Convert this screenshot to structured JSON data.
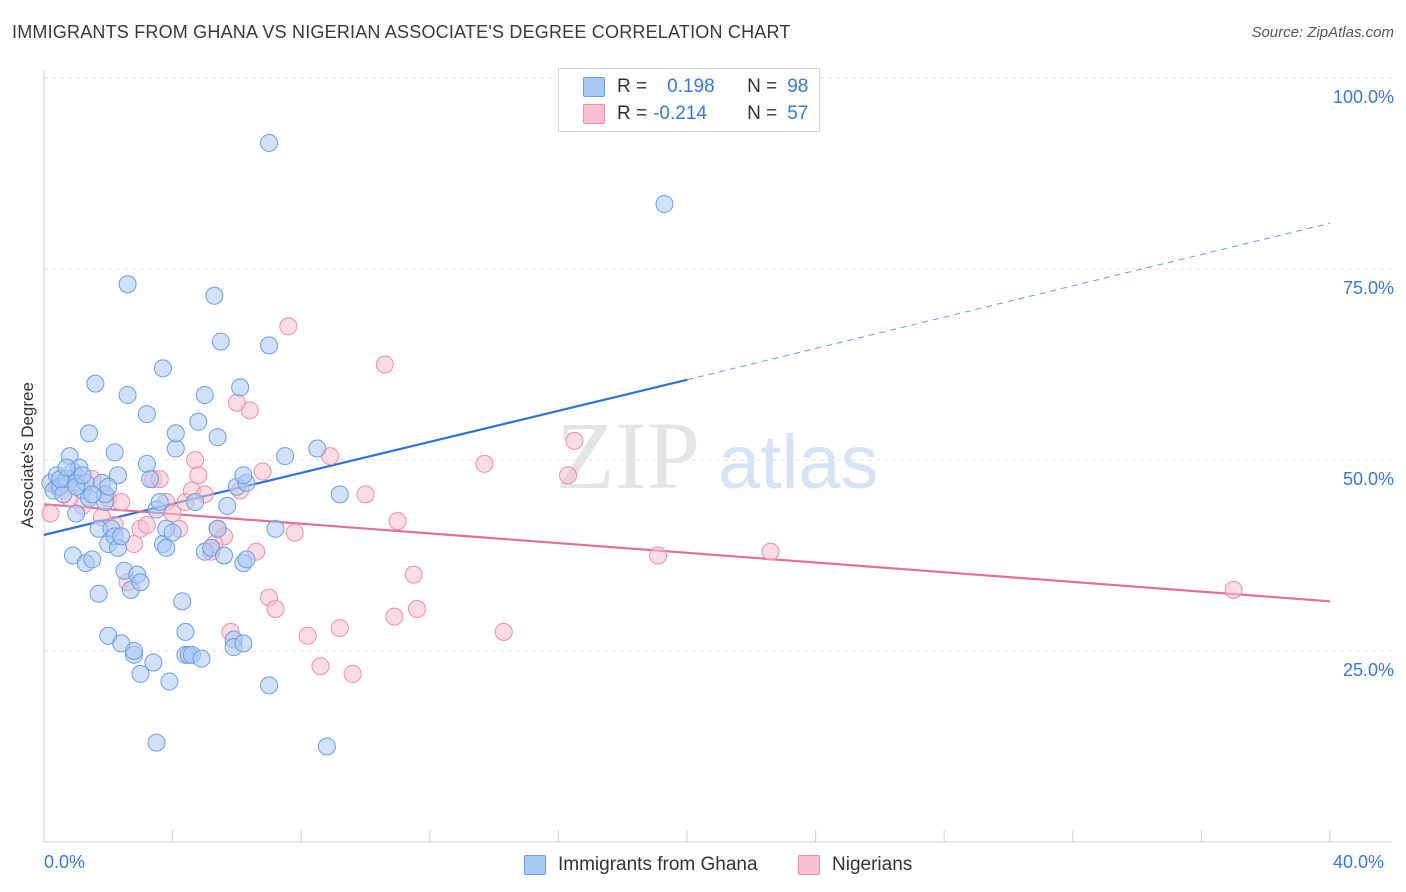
{
  "title": "IMMIGRANTS FROM GHANA VS NIGERIAN ASSOCIATE'S DEGREE CORRELATION CHART",
  "source": "Source: ZipAtlas.com",
  "watermark": {
    "zip": "ZIP",
    "atlas": "atlas"
  },
  "colors": {
    "blue_fill": "#a9c8f4",
    "blue_stroke": "#6f9ee0",
    "blue_line": "#2e72d2",
    "pink_fill": "#f7bfd0",
    "pink_stroke": "#ec8fab",
    "pink_line": "#e0709a",
    "tick_text": "#3a78d8",
    "grid": "#e2e2e2"
  },
  "legend": {
    "rows": [
      {
        "r_label": "R =",
        "r_value": "0.198",
        "n_label": "N =",
        "n_value": "98",
        "series": "blue"
      },
      {
        "r_label": "R =",
        "r_value": "-0.214",
        "n_label": "N =",
        "n_value": "57",
        "series": "pink"
      }
    ]
  },
  "bottom_legend": [
    {
      "label": "Immigrants from Ghana",
      "series": "blue"
    },
    {
      "label": "Nigerians",
      "series": "pink"
    }
  ],
  "chart_data": {
    "type": "scatter",
    "title": "IMMIGRANTS FROM GHANA VS NIGERIAN ASSOCIATE'S DEGREE CORRELATION CHART",
    "xlabel": "",
    "ylabel": "Associate's Degree",
    "xlim": [
      0,
      40
    ],
    "ylim": [
      0,
      105
    ],
    "x_tick_labels": [
      "0.0%",
      "40.0%"
    ],
    "y_ticks": [
      25,
      50,
      75,
      100
    ],
    "y_tick_labels": [
      "25.0%",
      "50.0%",
      "75.0%",
      "100.0%"
    ],
    "grid": true,
    "legend_position": "top-center",
    "series": [
      {
        "name": "Immigrants from Ghana",
        "color": "blue",
        "stats": {
          "R": 0.198,
          "N": 98
        },
        "trend": {
          "x0": 0,
          "y0": 40.2,
          "x1": 20,
          "y1": 60.5,
          "dash_to_x": 40,
          "dash_to_y": 81.0
        },
        "points": [
          [
            0.2,
            47
          ],
          [
            0.3,
            46
          ],
          [
            0.4,
            48
          ],
          [
            0.5,
            46.5
          ],
          [
            0.6,
            45.5
          ],
          [
            0.7,
            47.5
          ],
          [
            0.8,
            50.5
          ],
          [
            0.9,
            48.5
          ],
          [
            1.0,
            43
          ],
          [
            1.0,
            47
          ],
          [
            0.9,
            37.5
          ],
          [
            1.1,
            49
          ],
          [
            1.2,
            46
          ],
          [
            1.3,
            36.5
          ],
          [
            1.3,
            47
          ],
          [
            1.4,
            53.5
          ],
          [
            1.4,
            45
          ],
          [
            1.5,
            37
          ],
          [
            1.6,
            60
          ],
          [
            1.7,
            41
          ],
          [
            1.7,
            32.5
          ],
          [
            1.8,
            47
          ],
          [
            1.9,
            44.5
          ],
          [
            1.9,
            45.5
          ],
          [
            2.0,
            39
          ],
          [
            2.0,
            27
          ],
          [
            2.1,
            41
          ],
          [
            2.2,
            40
          ],
          [
            2.2,
            51
          ],
          [
            2.3,
            48
          ],
          [
            2.3,
            38.5
          ],
          [
            2.4,
            26
          ],
          [
            2.5,
            35.5
          ],
          [
            2.6,
            73
          ],
          [
            2.6,
            58.5
          ],
          [
            2.7,
            33
          ],
          [
            2.8,
            24.5
          ],
          [
            2.8,
            25
          ],
          [
            2.9,
            35
          ],
          [
            3.0,
            34
          ],
          [
            3.0,
            22
          ],
          [
            2.4,
            40
          ],
          [
            3.2,
            49.5
          ],
          [
            3.2,
            56
          ],
          [
            3.3,
            47.5
          ],
          [
            3.4,
            23.5
          ],
          [
            3.5,
            43.5
          ],
          [
            3.6,
            44.5
          ],
          [
            3.7,
            39
          ],
          [
            3.7,
            62
          ],
          [
            3.8,
            41
          ],
          [
            3.9,
            21
          ],
          [
            4.1,
            51.5
          ],
          [
            4.1,
            53.5
          ],
          [
            4.3,
            31.5
          ],
          [
            4.4,
            27.5
          ],
          [
            4.4,
            24.5
          ],
          [
            4.5,
            24.5
          ],
          [
            4.6,
            24.5
          ],
          [
            4.7,
            44.5
          ],
          [
            4.8,
            55
          ],
          [
            4.9,
            24
          ],
          [
            5.0,
            38
          ],
          [
            5.0,
            58.5
          ],
          [
            5.2,
            38.5
          ],
          [
            5.3,
            71.5
          ],
          [
            5.4,
            53
          ],
          [
            5.4,
            41
          ],
          [
            5.5,
            65.5
          ],
          [
            5.6,
            37.5
          ],
          [
            5.7,
            44
          ],
          [
            5.9,
            26.5
          ],
          [
            5.9,
            25.5
          ],
          [
            6.0,
            46.5
          ],
          [
            6.1,
            59.5
          ],
          [
            6.3,
            47
          ],
          [
            6.2,
            36.5
          ],
          [
            6.2,
            26
          ],
          [
            6.2,
            48
          ],
          [
            6.3,
            37
          ],
          [
            7.0,
            20.5
          ],
          [
            7.5,
            50.5
          ],
          [
            7.0,
            65
          ],
          [
            7.0,
            91.5
          ],
          [
            7.2,
            41
          ],
          [
            8.5,
            51.5
          ],
          [
            9.2,
            45.5
          ],
          [
            8.8,
            12.5
          ],
          [
            3.5,
            13
          ],
          [
            19.3,
            83.5
          ],
          [
            3.8,
            38.5
          ],
          [
            1.5,
            45.5
          ],
          [
            2.0,
            46.5
          ],
          [
            0.5,
            47.5
          ],
          [
            1.0,
            46.5
          ],
          [
            0.7,
            49
          ],
          [
            1.2,
            48
          ],
          [
            4.0,
            40.5
          ]
        ]
      },
      {
        "name": "Nigerians",
        "color": "pink",
        "stats": {
          "R": -0.214,
          "N": 57
        },
        "trend": {
          "x0": 0,
          "y0": 44.2,
          "x1": 40,
          "y1": 31.5
        },
        "points": [
          [
            0.2,
            43
          ],
          [
            0.4,
            46.5
          ],
          [
            0.6,
            47
          ],
          [
            0.8,
            45
          ],
          [
            1.0,
            48
          ],
          [
            1.2,
            44
          ],
          [
            1.5,
            47.5
          ],
          [
            1.8,
            42.5
          ],
          [
            2.0,
            45
          ],
          [
            2.2,
            41.5
          ],
          [
            2.4,
            44.5
          ],
          [
            2.6,
            34
          ],
          [
            2.8,
            39
          ],
          [
            3.0,
            41
          ],
          [
            3.2,
            41.5
          ],
          [
            3.4,
            47.5
          ],
          [
            3.6,
            47.5
          ],
          [
            3.8,
            44.5
          ],
          [
            4.0,
            43
          ],
          [
            4.2,
            41
          ],
          [
            4.4,
            44.5
          ],
          [
            4.6,
            46
          ],
          [
            4.7,
            50
          ],
          [
            4.8,
            48
          ],
          [
            5.0,
            45.5
          ],
          [
            5.2,
            38
          ],
          [
            5.4,
            41
          ],
          [
            5.6,
            40
          ],
          [
            5.8,
            27.5
          ],
          [
            6.0,
            57.5
          ],
          [
            6.1,
            46
          ],
          [
            6.4,
            56.5
          ],
          [
            6.8,
            48.5
          ],
          [
            7.0,
            32
          ],
          [
            7.2,
            30.5
          ],
          [
            7.6,
            67.5
          ],
          [
            7.8,
            40.5
          ],
          [
            8.2,
            27
          ],
          [
            8.6,
            23
          ],
          [
            8.9,
            50.5
          ],
          [
            9.2,
            28
          ],
          [
            9.6,
            22
          ],
          [
            10.0,
            45.5
          ],
          [
            10.6,
            62.5
          ],
          [
            10.9,
            29.5
          ],
          [
            11.0,
            42
          ],
          [
            11.5,
            35
          ],
          [
            11.6,
            30.5
          ],
          [
            13.7,
            49.5
          ],
          [
            14.3,
            27.5
          ],
          [
            16.3,
            48
          ],
          [
            16.5,
            52.5
          ],
          [
            19.1,
            37.5
          ],
          [
            22.6,
            38
          ],
          [
            37.0,
            33
          ],
          [
            6.6,
            38
          ],
          [
            5.3,
            39
          ]
        ]
      }
    ]
  }
}
